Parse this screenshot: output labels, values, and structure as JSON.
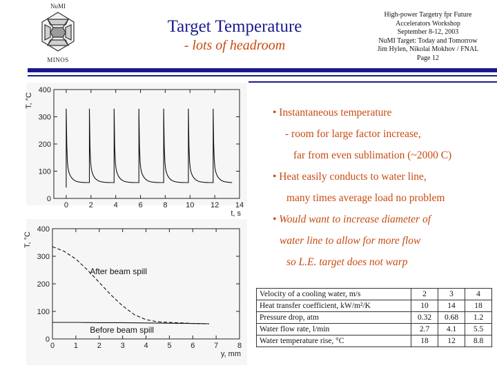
{
  "logo": {
    "top_text": "NuMI",
    "bottom_text": "MINOS"
  },
  "title": {
    "main": "Target Temperature",
    "subtitle": "- lots of headroom"
  },
  "header_info": [
    "High-power Targetry fpr Future",
    "Accelerators Workshop",
    "September 8-12, 2003",
    "NuMI Target: Today and Tomorrow",
    "Jim Hylen, Nikolai Mokhov / FNAL",
    "Page 12"
  ],
  "colors": {
    "title": "#1a1a8c",
    "accent": "#c84a10",
    "rule": "#1a1a8c"
  },
  "bullets": [
    {
      "text": "• Instantaneous temperature",
      "italic": false,
      "indent": 0
    },
    {
      "text": "- room for large factor increase,",
      "italic": false,
      "indent": 18
    },
    {
      "text": "far from even sublimation (~2000 C)",
      "italic": false,
      "indent": 30
    },
    {
      "text": "• Heat easily conducts to water line,",
      "italic": false,
      "indent": 0
    },
    {
      "text": "many times average load no problem",
      "italic": false,
      "indent": 20
    },
    {
      "text": "• Would want to increase diameter of",
      "italic": true,
      "indent": 0
    },
    {
      "text": "water line to allow for more flow",
      "italic": true,
      "indent": 10
    },
    {
      "text": "so L.E. target does not warp",
      "italic": true,
      "indent": 20
    }
  ],
  "table": {
    "rows": [
      {
        "label": "Velocity of a cooling water, m/s",
        "values": [
          "2",
          "3",
          "4"
        ]
      },
      {
        "label": "Heat transfer coefficient, kW/m²/K",
        "values": [
          "10",
          "14",
          "18"
        ]
      },
      {
        "label": "Pressure drop, atm",
        "values": [
          "0.32",
          "0.68",
          "1.2"
        ]
      },
      {
        "label": "Water flow rate, l/min",
        "values": [
          "2.7",
          "4.1",
          "5.5"
        ]
      },
      {
        "label": "Water temperature rise, °C",
        "values": [
          "18",
          "12",
          "8.8"
        ]
      }
    ]
  },
  "chart_data": [
    {
      "type": "line",
      "xlabel": "t, s",
      "ylabel": "T, °C",
      "xlim": [
        -1,
        14
      ],
      "ylim": [
        0,
        400
      ],
      "xticks": [
        0,
        2,
        4,
        6,
        8,
        10,
        12,
        14
      ],
      "yticks": [
        0,
        100,
        200,
        300,
        400
      ],
      "grid": false,
      "series": [
        {
          "pulse_times": [
            0,
            1.87,
            3.87,
            5.87,
            7.87,
            9.87,
            11.87
          ],
          "peak": 330,
          "trough": 58,
          "first_pulse_start": 40
        }
      ]
    },
    {
      "type": "line",
      "xlabel": "y, mm",
      "ylabel": "T, °C",
      "xlim": [
        0,
        8
      ],
      "ylim": [
        0,
        400
      ],
      "xticks": [
        0,
        1,
        2,
        3,
        4,
        5,
        6,
        7,
        8
      ],
      "yticks": [
        0,
        100,
        200,
        300,
        400
      ],
      "grid": false,
      "annotations": [
        "After beam spill",
        "Before beam spill"
      ],
      "series": [
        {
          "name": "After beam spill",
          "style": "dashed",
          "x": [
            0,
            0.5,
            1.0,
            1.5,
            2.0,
            2.5,
            3.0,
            3.5,
            4.0,
            4.5,
            5.0,
            6.0,
            6.7
          ],
          "y": [
            335,
            318,
            290,
            250,
            205,
            160,
            120,
            88,
            70,
            62,
            60,
            56,
            55
          ]
        },
        {
          "name": "Before beam spill",
          "style": "solid",
          "x": [
            0,
            1,
            2,
            3,
            4,
            5,
            6,
            6.7
          ],
          "y": [
            60,
            60,
            59,
            59,
            58,
            57,
            56,
            55
          ]
        }
      ]
    }
  ]
}
